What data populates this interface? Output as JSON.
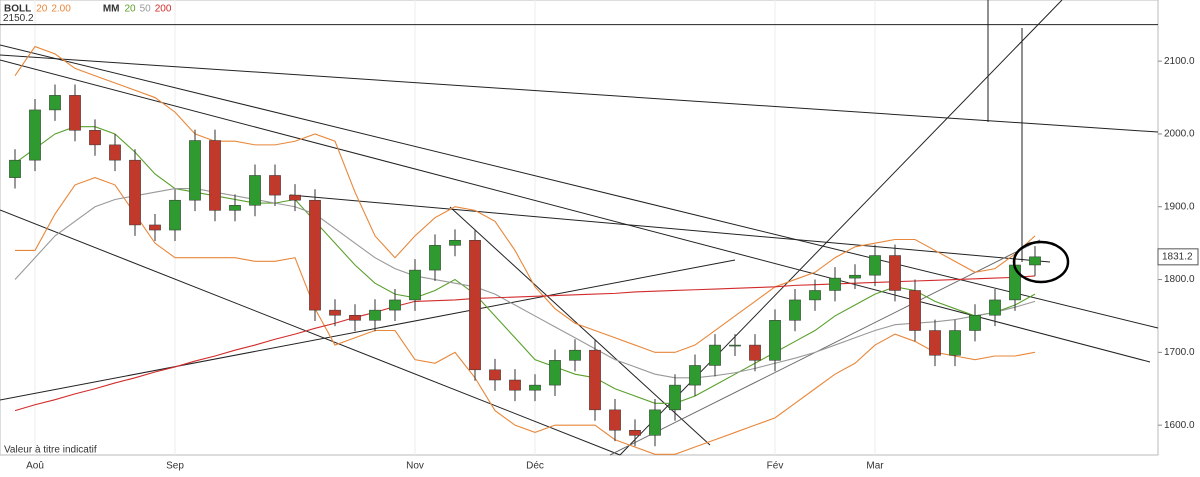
{
  "chart_data": {
    "type": "candlestick",
    "indicators": [
      {
        "label": "BOLL",
        "params": [
          "20",
          "2.00"
        ],
        "colors": [
          "#e8873a",
          "#e8873a"
        ]
      },
      {
        "label": "MM",
        "params": [
          "20",
          "50",
          "200"
        ],
        "colors": [
          "#5aa02c",
          "#999999",
          "#d22b2b"
        ]
      }
    ],
    "footnote": "Valeur à titre indicatif",
    "hline": {
      "value": 2150.2
    },
    "categories": [
      null,
      "Aoû",
      null,
      null,
      null,
      null,
      null,
      null,
      "Sep",
      null,
      null,
      null,
      null,
      null,
      null,
      null,
      null,
      null,
      null,
      null,
      "Nov",
      null,
      null,
      null,
      null,
      null,
      "Déc",
      null,
      null,
      null,
      null,
      null,
      null,
      null,
      null,
      null,
      null,
      null,
      "Fév",
      null,
      null,
      null,
      null,
      "Mar",
      null,
      null,
      null,
      null,
      null,
      null,
      null,
      null
    ],
    "open": [
      1940,
      1964,
      2033,
      2053,
      2005,
      1985,
      1964,
      1875,
      1868,
      1909,
      1991,
      1895,
      1902,
      1943,
      1916,
      1909,
      1758,
      1751,
      1744,
      1758,
      1772,
      1813,
      1847,
      1854,
      1676,
      1662,
      1648,
      1655,
      1689,
      1703,
      1621,
      1593,
      1586,
      1621,
      1655,
      1682,
      1710,
      1710,
      1689,
      1744,
      1772,
      1785,
      1802,
      1806,
      1833,
      1785,
      1730,
      1696,
      1730,
      1751,
      1772,
      1820
    ],
    "high": [
      1979,
      2048,
      2068,
      2068,
      2020,
      2000,
      1979,
      1890,
      1924,
      2006,
      2006,
      1917,
      1958,
      1958,
      1931,
      1924,
      1773,
      1766,
      1773,
      1787,
      1828,
      1862,
      1869,
      1869,
      1691,
      1677,
      1670,
      1704,
      1718,
      1718,
      1636,
      1608,
      1636,
      1670,
      1697,
      1725,
      1725,
      1725,
      1759,
      1787,
      1800,
      1817,
      1821,
      1848,
      1848,
      1800,
      1745,
      1745,
      1766,
      1787,
      1835,
      1846
    ],
    "low": [
      1925,
      1949,
      2018,
      1990,
      1970,
      1949,
      1860,
      1853,
      1853,
      1894,
      1880,
      1880,
      1887,
      1901,
      1894,
      1743,
      1736,
      1729,
      1729,
      1743,
      1757,
      1798,
      1832,
      1661,
      1647,
      1633,
      1633,
      1640,
      1674,
      1606,
      1578,
      1571,
      1571,
      1606,
      1640,
      1667,
      1695,
      1674,
      1674,
      1729,
      1757,
      1770,
      1787,
      1791,
      1770,
      1715,
      1681,
      1681,
      1715,
      1736,
      1757,
      1805
    ],
    "close": [
      1964,
      2033,
      2053,
      2005,
      1985,
      1964,
      1875,
      1868,
      1909,
      1991,
      1895,
      1902,
      1943,
      1916,
      1909,
      1758,
      1751,
      1744,
      1758,
      1772,
      1813,
      1847,
      1854,
      1676,
      1662,
      1648,
      1655,
      1689,
      1703,
      1621,
      1593,
      1586,
      1621,
      1655,
      1682,
      1710,
      1710,
      1689,
      1744,
      1772,
      1785,
      1802,
      1806,
      1833,
      1785,
      1730,
      1696,
      1730,
      1751,
      1772,
      1820,
      1831.2
    ],
    "up_color": "#2f9a2f",
    "down_color": "#c0392b",
    "overlays": [
      {
        "color": "#e8873a",
        "values": [
          2080,
          2120,
          2110,
          2090,
          2080,
          2070,
          2060,
          2050,
          2030,
          2000,
          1990,
          1990,
          1985,
          1985,
          1990,
          2000,
          1990,
          1920,
          1860,
          1830,
          1860,
          1885,
          1900,
          1895,
          1880,
          1840,
          1790,
          1760,
          1740,
          1730,
          1720,
          1710,
          1700,
          1700,
          1710,
          1730,
          1750,
          1770,
          1790,
          1800,
          1810,
          1830,
          1845,
          1850,
          1855,
          1855,
          1840,
          1825,
          1810,
          1815,
          1835,
          1860
        ]
      },
      {
        "color": "#e8873a",
        "values": [
          1840,
          1840,
          1890,
          1930,
          1940,
          1930,
          1890,
          1850,
          1830,
          1830,
          1830,
          1830,
          1825,
          1825,
          1830,
          1760,
          1710,
          1720,
          1730,
          1730,
          1690,
          1685,
          1700,
          1665,
          1620,
          1600,
          1590,
          1600,
          1600,
          1600,
          1580,
          1570,
          1560,
          1560,
          1570,
          1580,
          1590,
          1600,
          1610,
          1630,
          1650,
          1670,
          1685,
          1710,
          1725,
          1715,
          1700,
          1695,
          1690,
          1695,
          1695,
          1700
        ]
      },
      {
        "color": "#5aa02c",
        "values": [
          1960,
          1980,
          2000,
          2010,
          2010,
          2000,
          1975,
          1945,
          1925,
          1920,
          1915,
          1910,
          1905,
          1905,
          1910,
          1880,
          1850,
          1820,
          1795,
          1780,
          1775,
          1785,
          1800,
          1780,
          1750,
          1720,
          1690,
          1680,
          1670,
          1665,
          1650,
          1640,
          1630,
          1630,
          1640,
          1655,
          1670,
          1685,
          1700,
          1715,
          1730,
          1750,
          1765,
          1780,
          1790,
          1785,
          1770,
          1760,
          1750,
          1755,
          1765,
          1780
        ]
      },
      {
        "color": "#999999",
        "values": [
          1800,
          1830,
          1860,
          1880,
          1900,
          1910,
          1915,
          1920,
          1925,
          1925,
          1920,
          1915,
          1910,
          1905,
          1900,
          1890,
          1870,
          1850,
          1830,
          1815,
          1805,
          1800,
          1795,
          1790,
          1780,
          1765,
          1750,
          1735,
          1720,
          1705,
          1690,
          1680,
          1670,
          1665,
          1665,
          1668,
          1672,
          1678,
          1685,
          1692,
          1700,
          1710,
          1720,
          1730,
          1738,
          1740,
          1742,
          1745,
          1750,
          1755,
          1762,
          1770
        ]
      },
      {
        "color": "#d22b2b",
        "values": [
          1620,
          1628,
          1635,
          1643,
          1650,
          1658,
          1665,
          1673,
          1680,
          1688,
          1695,
          1703,
          1710,
          1718,
          1725,
          1733,
          1740,
          1748,
          1755,
          1763,
          1770,
          1771,
          1772,
          1774,
          1775,
          1776,
          1777,
          1778,
          1779,
          1780,
          1781,
          1783,
          1784,
          1785,
          1786,
          1787,
          1788,
          1789,
          1790,
          1792,
          1793,
          1794,
          1795,
          1796,
          1797,
          1798,
          1799,
          1800,
          1801,
          1802,
          1803,
          1805
        ]
      }
    ],
    "ylim": [
      1559,
      2184
    ],
    "yticks": [
      {
        "value": 1600,
        "label": "1600.0"
      },
      {
        "value": 1700,
        "label": "1700.0"
      },
      {
        "value": 1800,
        "label": "1800.0"
      },
      {
        "value": 1900,
        "label": "1900.0"
      },
      {
        "value": 2000,
        "label": "2000.0"
      },
      {
        "value": 2100,
        "label": "2100.0"
      }
    ]
  }
}
